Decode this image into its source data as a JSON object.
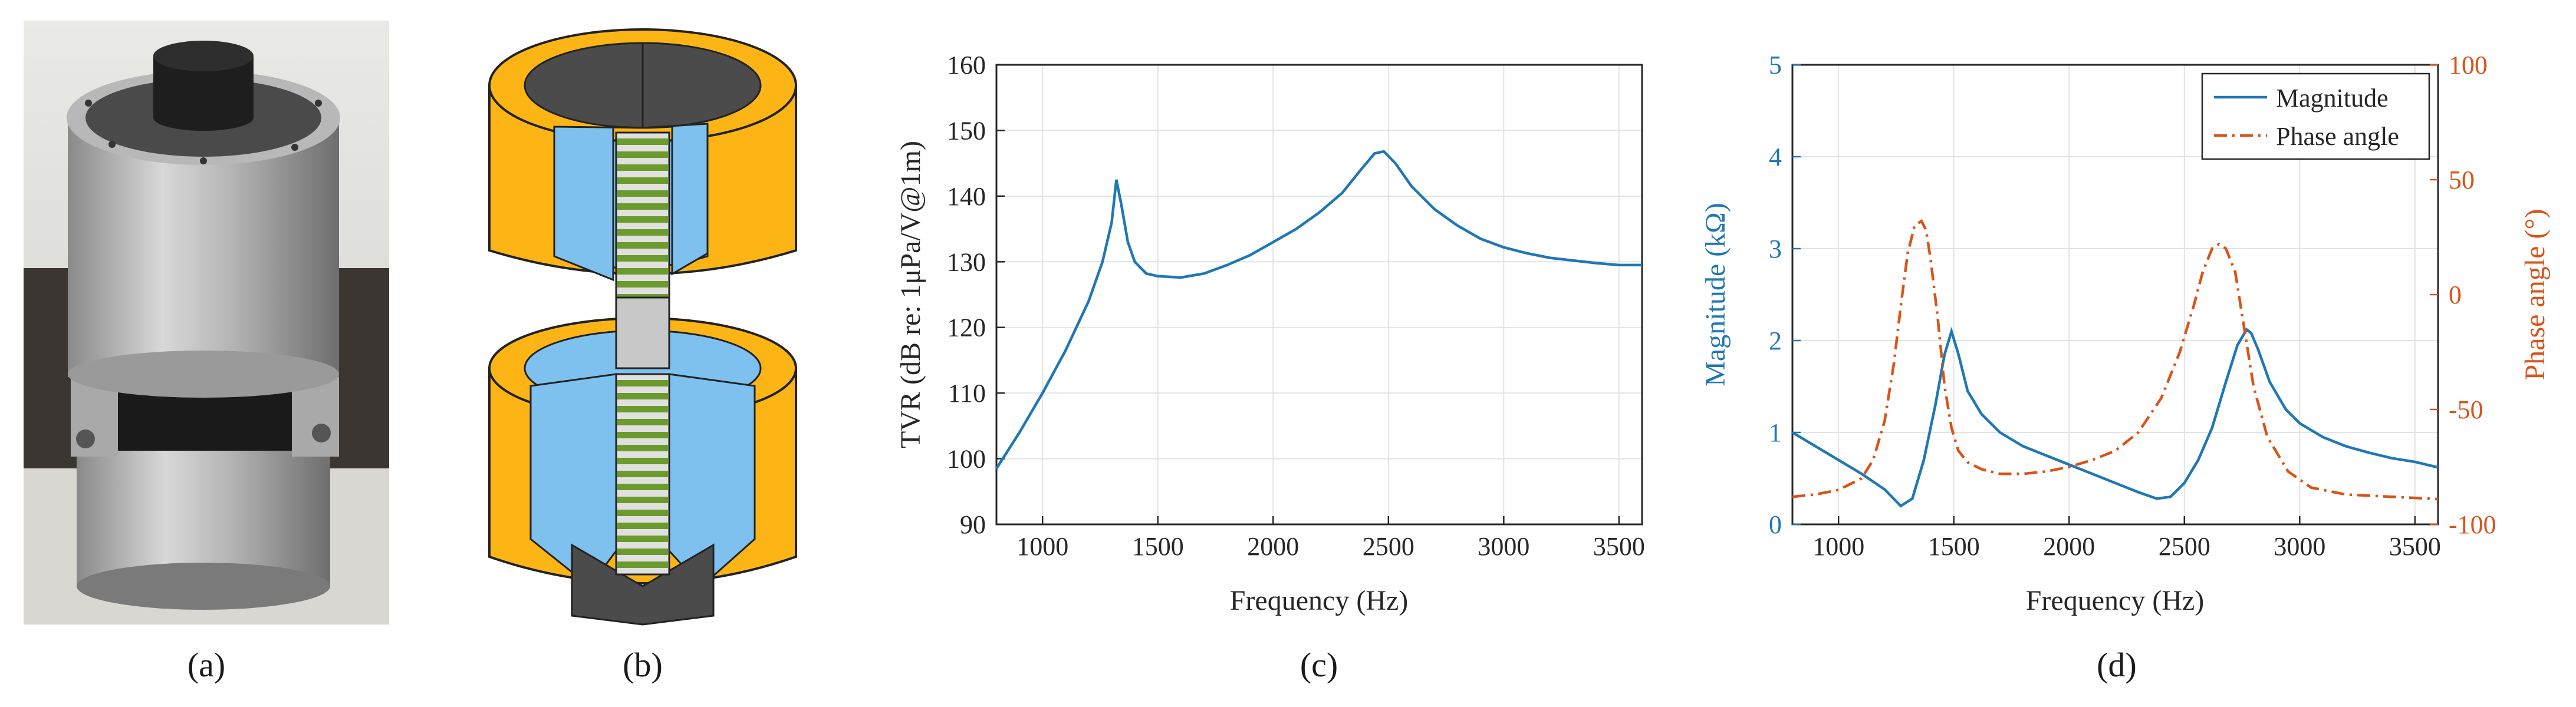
{
  "captions": {
    "a": "(a)",
    "b": "(b)",
    "c": "(c)",
    "d": "(d)"
  },
  "colors": {
    "blue": "#1f77b4",
    "orange": "#d95319",
    "yellow": "#fdb515",
    "light_blue": "#7ec0ee",
    "green": "#6a9b2c",
    "dark": "#4b4b4b"
  },
  "chart_data": [
    {
      "type": "line",
      "panel": "c",
      "xlabel": "Frequency (Hz)",
      "ylabel": "TVR (dB re: 1μPa/V@1m)",
      "xlim": [
        800,
        3600
      ],
      "ylim": [
        90,
        160
      ],
      "xticks": [
        1000,
        1500,
        2000,
        2500,
        3000,
        3500
      ],
      "yticks": [
        90,
        100,
        110,
        120,
        130,
        140,
        150,
        160
      ],
      "grid": true,
      "series": [
        {
          "color": "#1f77b4",
          "x": [
            800,
            900,
            1000,
            1100,
            1200,
            1260,
            1300,
            1320,
            1340,
            1370,
            1400,
            1450,
            1500,
            1600,
            1700,
            1800,
            1900,
            2000,
            2100,
            2200,
            2300,
            2380,
            2440,
            2480,
            2530,
            2600,
            2700,
            2800,
            2900,
            3000,
            3100,
            3200,
            3300,
            3400,
            3500,
            3600
          ],
          "y": [
            98.5,
            104,
            110,
            116.5,
            124,
            130,
            136,
            142.5,
            139,
            133,
            130,
            128.2,
            127.8,
            127.6,
            128.2,
            129.5,
            131,
            133,
            135,
            137.5,
            140.5,
            144,
            146.5,
            146.8,
            145,
            141.5,
            138,
            135.5,
            133.5,
            132.2,
            131.3,
            130.6,
            130.2,
            129.8,
            129.5,
            129.5
          ]
        }
      ]
    },
    {
      "type": "line",
      "panel": "d",
      "xlabel": "Frequency (Hz)",
      "ylabel": "Magnitude (kΩ)",
      "ylabel_right": "Phase angle (°)",
      "xlim": [
        800,
        3600
      ],
      "ylim": [
        0,
        5
      ],
      "ylim_right": [
        -100,
        100
      ],
      "xticks": [
        1000,
        1500,
        2000,
        2500,
        3000,
        3500
      ],
      "yticks": [
        0,
        1,
        2,
        3,
        4,
        5
      ],
      "yticks_right": [
        -100,
        -50,
        0,
        50,
        100
      ],
      "grid": true,
      "legend_position": "top-right",
      "series": [
        {
          "name": "Magnitude",
          "axis": "left",
          "color": "#1f77b4",
          "style": "solid",
          "x": [
            800,
            900,
            1000,
            1100,
            1200,
            1270,
            1320,
            1370,
            1420,
            1460,
            1490,
            1520,
            1560,
            1620,
            1700,
            1800,
            1900,
            2000,
            2100,
            2200,
            2300,
            2380,
            2440,
            2500,
            2560,
            2620,
            2680,
            2730,
            2770,
            2790,
            2820,
            2870,
            2940,
            3000,
            3100,
            3200,
            3300,
            3400,
            3500,
            3600
          ],
          "y": [
            1.0,
            0.85,
            0.7,
            0.55,
            0.38,
            0.2,
            0.28,
            0.7,
            1.3,
            1.85,
            2.1,
            1.85,
            1.45,
            1.2,
            1.0,
            0.85,
            0.75,
            0.65,
            0.55,
            0.45,
            0.35,
            0.28,
            0.3,
            0.45,
            0.7,
            1.05,
            1.55,
            1.95,
            2.12,
            2.08,
            1.9,
            1.55,
            1.25,
            1.1,
            0.95,
            0.85,
            0.78,
            0.72,
            0.68,
            0.62
          ]
        },
        {
          "name": "Phase angle",
          "axis": "right",
          "color": "#d95319",
          "style": "dashdot",
          "x": [
            800,
            900,
            1000,
            1100,
            1150,
            1200,
            1240,
            1270,
            1300,
            1330,
            1360,
            1380,
            1400,
            1430,
            1460,
            1490,
            1520,
            1560,
            1620,
            1700,
            1800,
            1900,
            2000,
            2100,
            2200,
            2300,
            2400,
            2480,
            2540,
            2580,
            2620,
            2650,
            2680,
            2720,
            2760,
            2800,
            2860,
            2950,
            3050,
            3200,
            3400,
            3600
          ],
          "y": [
            -88,
            -87,
            -85,
            -80,
            -72,
            -55,
            -30,
            -5,
            18,
            30,
            32,
            28,
            15,
            -10,
            -40,
            -58,
            -68,
            -73,
            -76,
            -78,
            -78,
            -77,
            -75,
            -72,
            -68,
            -60,
            -45,
            -25,
            -5,
            10,
            20,
            22,
            20,
            10,
            -15,
            -40,
            -62,
            -77,
            -84,
            -87,
            -88,
            -89
          ]
        }
      ]
    }
  ]
}
